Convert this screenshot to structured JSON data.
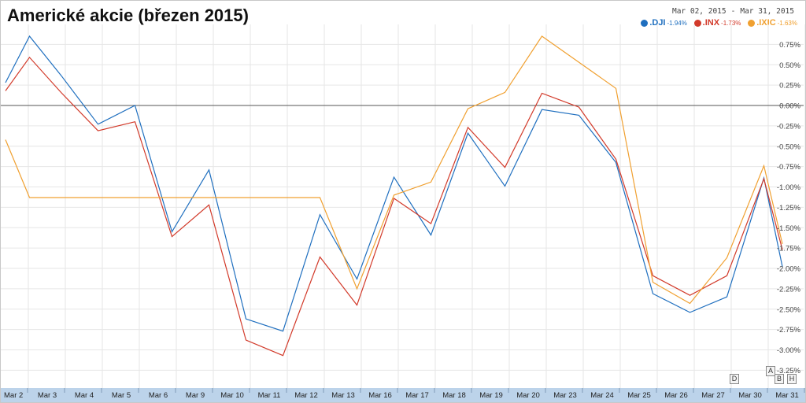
{
  "header": {
    "title": "Americké akcie (březen 2015)",
    "date_from": "Mar 02, 2015",
    "date_sep": "-",
    "date_to": "Mar 31, 2015"
  },
  "legend": [
    {
      "name": ".DJI",
      "change": "-1.94%",
      "color": "#1f6fbf"
    },
    {
      "name": ".INX",
      "change": "-1.73%",
      "color": "#d23a2a"
    },
    {
      "name": ".IXIC",
      "change": "-1.63%",
      "color": "#f0a030"
    }
  ],
  "controls": {
    "a_label": "A",
    "b_label": "B",
    "h_label": "H",
    "d_label": "D"
  },
  "colors": {
    "dji": "#1f6fbf",
    "inx": "#d23a2a",
    "ixic": "#f0a030",
    "axis_bar": "#bcd3ea",
    "grid": "#e6e6e6"
  },
  "chart_data": {
    "type": "line",
    "title": "Americké akcie (březen 2015)",
    "x": [
      "Mar 2",
      "Mar 3",
      "Mar 4",
      "Mar 5",
      "Mar 6",
      "Mar 9",
      "Mar 10",
      "Mar 11",
      "Mar 12",
      "Mar 13",
      "Mar 16",
      "Mar 17",
      "Mar 18",
      "Mar 19",
      "Mar 20",
      "Mar 23",
      "Mar 24",
      "Mar 25",
      "Mar 26",
      "Mar 27",
      "Mar 30",
      "Mar 31"
    ],
    "ylim": [
      -3.3,
      0.85
    ],
    "y_ticks": [
      0.75,
      0.5,
      0.25,
      0.0,
      -0.25,
      -0.5,
      -0.75,
      -1.0,
      -1.25,
      -1.5,
      -1.75,
      -2.0,
      -2.25,
      -2.5,
      -2.75,
      -3.0,
      -3.25
    ],
    "y_tick_labels": [
      "0.75%",
      "0.50%",
      "0.25%",
      "0.00%",
      "-0.25%",
      "-0.50%",
      "-0.75%",
      "-1.00%",
      "-1.25%",
      "-1.50%",
      "-1.75%",
      "-2.00%",
      "-2.25%",
      "-2.50%",
      "-2.75%",
      "-3.00%",
      "-3.25%"
    ],
    "grid": true,
    "legend_position": "top-right",
    "series": [
      {
        "name": ".DJI",
        "color": "#1f6fbf",
        "points": [
          [
            0.0,
            0.28
          ],
          [
            0.65,
            0.85
          ],
          [
            1.5,
            0.37
          ],
          [
            2.5,
            -0.23
          ],
          [
            3.5,
            0.0
          ],
          [
            4.5,
            -1.55
          ],
          [
            5.5,
            -0.79
          ],
          [
            6.5,
            -2.62
          ],
          [
            7.5,
            -2.77
          ],
          [
            8.5,
            -1.34
          ],
          [
            9.5,
            -2.13
          ],
          [
            10.5,
            -0.88
          ],
          [
            11.5,
            -1.59
          ],
          [
            12.5,
            -0.34
          ],
          [
            13.5,
            -0.99
          ],
          [
            14.5,
            -0.05
          ],
          [
            15.5,
            -0.12
          ],
          [
            16.5,
            -0.7
          ],
          [
            17.5,
            -2.31
          ],
          [
            18.5,
            -2.54
          ],
          [
            19.5,
            -2.35
          ],
          [
            20.5,
            -0.89
          ],
          [
            21.0,
            -1.98
          ]
        ]
      },
      {
        "name": ".INX",
        "color": "#d23a2a",
        "points": [
          [
            0.0,
            0.18
          ],
          [
            0.65,
            0.59
          ],
          [
            1.5,
            0.16
          ],
          [
            2.5,
            -0.31
          ],
          [
            3.5,
            -0.2
          ],
          [
            4.5,
            -1.61
          ],
          [
            5.5,
            -1.22
          ],
          [
            6.5,
            -2.88
          ],
          [
            7.5,
            -3.07
          ],
          [
            8.5,
            -1.86
          ],
          [
            9.5,
            -2.45
          ],
          [
            10.5,
            -1.14
          ],
          [
            11.5,
            -1.45
          ],
          [
            12.5,
            -0.27
          ],
          [
            13.5,
            -0.76
          ],
          [
            14.5,
            0.15
          ],
          [
            15.5,
            -0.02
          ],
          [
            16.5,
            -0.66
          ],
          [
            17.5,
            -2.09
          ],
          [
            18.5,
            -2.33
          ],
          [
            19.5,
            -2.09
          ],
          [
            20.5,
            -0.9
          ],
          [
            21.0,
            -1.77
          ]
        ]
      },
      {
        "name": ".IXIC",
        "color": "#f0a030",
        "points": [
          [
            0.0,
            -0.42
          ],
          [
            0.65,
            -1.13
          ],
          [
            8.5,
            -1.13
          ],
          [
            9.5,
            -2.25
          ],
          [
            10.5,
            -1.1
          ],
          [
            11.5,
            -0.94
          ],
          [
            12.5,
            -0.04
          ],
          [
            13.5,
            0.16
          ],
          [
            14.5,
            0.85
          ],
          [
            15.5,
            0.53
          ],
          [
            16.5,
            0.21
          ],
          [
            17.5,
            -2.17
          ],
          [
            18.5,
            -2.43
          ],
          [
            19.5,
            -1.87
          ],
          [
            20.5,
            -0.74
          ],
          [
            21.0,
            -1.7
          ]
        ]
      }
    ]
  }
}
